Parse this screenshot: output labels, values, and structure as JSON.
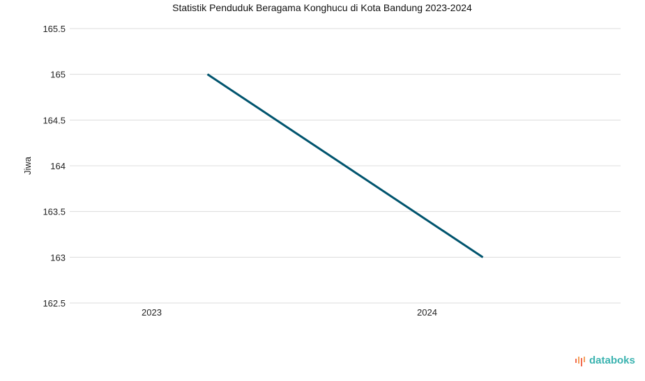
{
  "chart_data": {
    "type": "line",
    "title": "Statistik Penduduk Beragama Konghucu di Kota Bandung 2023-2024",
    "xlabel": "",
    "ylabel": "Jiwa",
    "categories": [
      "2023",
      "2024"
    ],
    "series": [
      {
        "name": "Jiwa",
        "values": [
          165,
          163
        ],
        "color": "#00546e"
      }
    ],
    "ylim": [
      162.5,
      165.5
    ],
    "yticks": [
      162.5,
      163,
      163.5,
      164,
      164.5,
      165,
      165.5
    ],
    "ytick_labels": [
      "162.5",
      "163",
      "163.5",
      "164",
      "164.5",
      "165",
      "165.5"
    ],
    "grid": true,
    "legend": "none"
  },
  "brand": {
    "name": "databoks",
    "color": "#3bb3b0",
    "accent": "#f26b4f"
  }
}
